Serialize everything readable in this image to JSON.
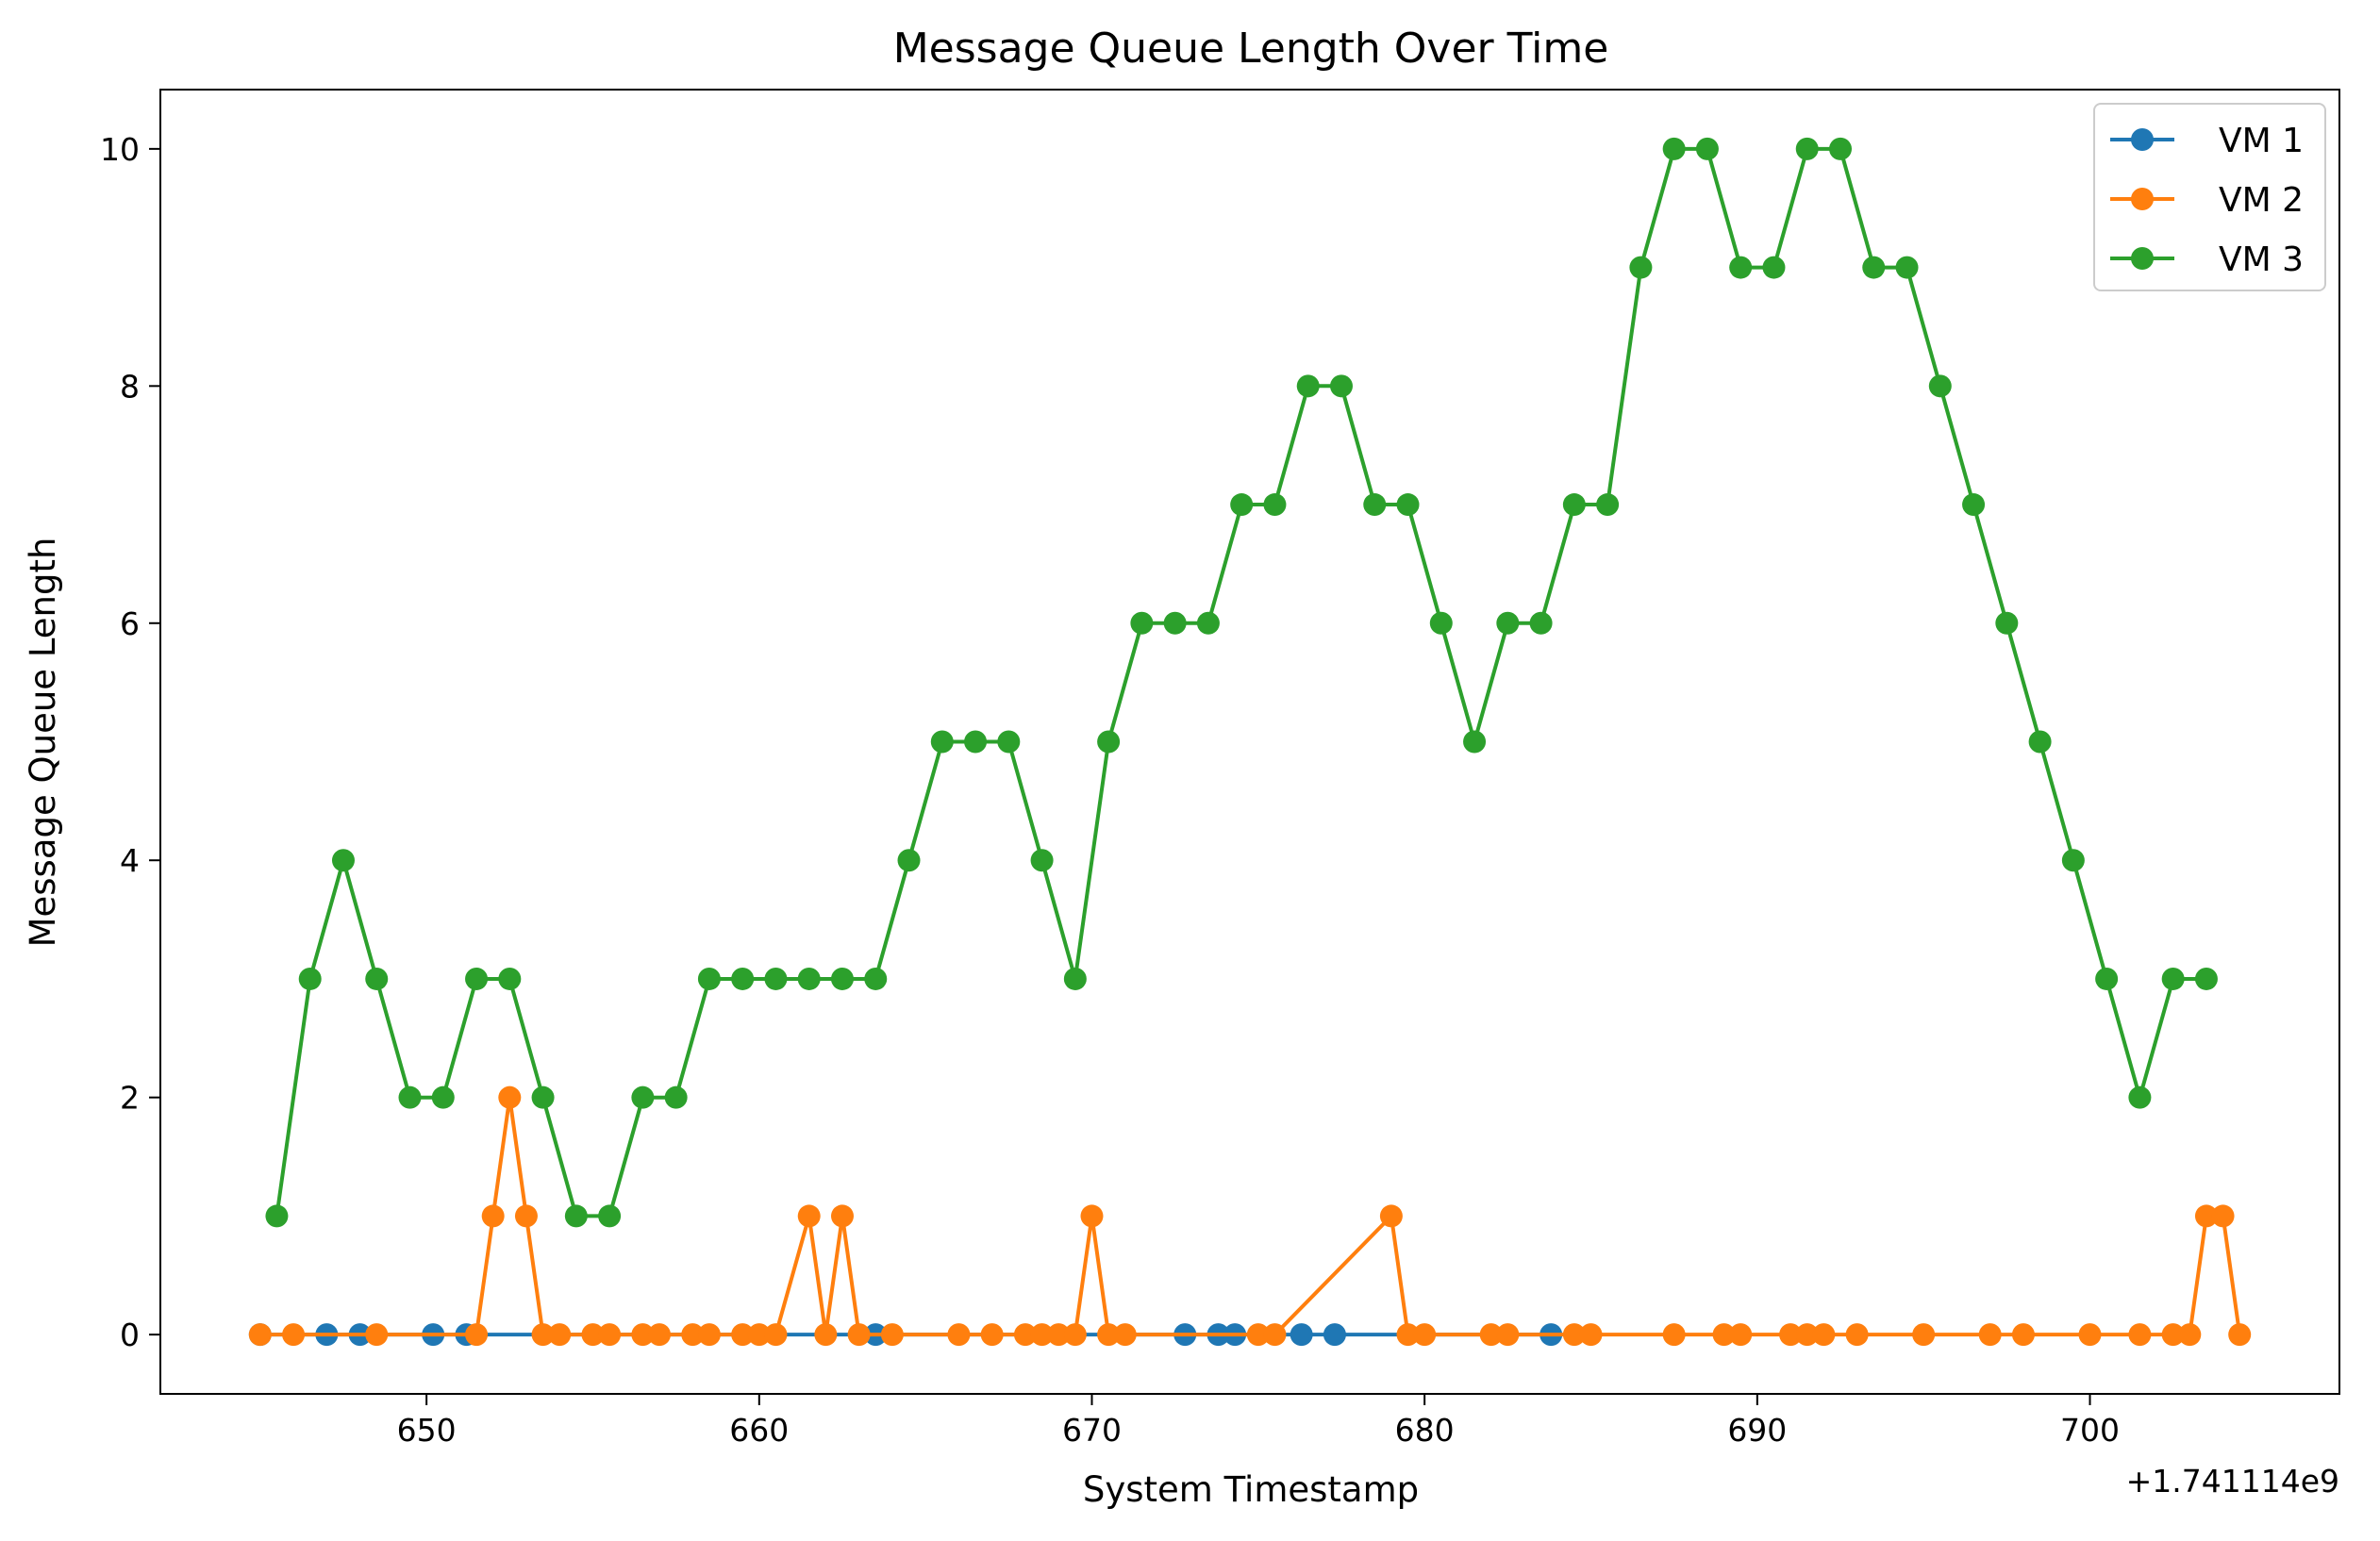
{
  "chart_data": {
    "type": "line",
    "title": "Message Queue Length Over Time",
    "xlabel": "System Timestamp",
    "ylabel": "Message Queue Length",
    "x_offset_label": "+1.741114e9",
    "xlim": [
      642,
      707.5
    ],
    "ylim": [
      -0.5,
      10.5
    ],
    "xticks": [
      650,
      660,
      670,
      680,
      690,
      700
    ],
    "yticks": [
      0,
      2,
      4,
      6,
      8,
      10
    ],
    "grid": false,
    "legend_position": "top-right",
    "series": [
      {
        "name": "VM 1",
        "color": "#1f77b4",
        "x": [
          645.0,
          647.0,
          648.0,
          650.2,
          651.2,
          663.5,
          672.8,
          673.8,
          674.3,
          676.3,
          677.3,
          683.8
        ],
        "y": [
          0,
          0,
          0,
          0,
          0,
          0,
          0,
          0,
          0,
          0,
          0,
          0
        ]
      },
      {
        "name": "VM 2",
        "color": "#ff7f0e",
        "x": [
          645.0,
          646.0,
          648.5,
          651.5,
          652.0,
          652.5,
          653.0,
          653.5,
          654.0,
          655.0,
          655.5,
          656.5,
          657.0,
          658.0,
          658.5,
          659.5,
          660.0,
          660.5,
          661.5,
          662.0,
          662.5,
          663.0,
          664.0,
          666.0,
          667.0,
          668.0,
          668.5,
          669.0,
          669.5,
          670.0,
          670.5,
          671.0,
          675.0,
          675.5,
          679.0,
          679.5,
          680.0,
          682.0,
          682.5,
          684.5,
          685.0,
          687.5,
          689.0,
          689.5,
          691.0,
          691.5,
          692.0,
          693.0,
          695.0,
          697.0,
          698.0,
          700.0,
          701.5,
          702.5,
          703.0,
          703.5,
          704.0,
          704.5
        ],
        "y": [
          0,
          0,
          0,
          0,
          1,
          2,
          1,
          0,
          0,
          0,
          0,
          0,
          0,
          0,
          0,
          0,
          0,
          0,
          1,
          0,
          1,
          0,
          0,
          0,
          0,
          0,
          0,
          0,
          0,
          1,
          0,
          0,
          0,
          0,
          1,
          0,
          0,
          0,
          0,
          0,
          0,
          0,
          0,
          0,
          0,
          0,
          0,
          0,
          0,
          0,
          0,
          0,
          0,
          0,
          0,
          1,
          1,
          0
        ]
      },
      {
        "name": "VM 3",
        "color": "#2ca02c",
        "x": [
          645.5,
          646.5,
          647.5,
          648.5,
          649.5,
          650.5,
          651.5,
          652.5,
          653.5,
          654.5,
          655.5,
          656.5,
          657.5,
          658.5,
          659.5,
          660.5,
          661.5,
          662.5,
          663.5,
          664.5,
          665.5,
          666.5,
          667.5,
          668.5,
          669.5,
          670.5,
          671.5,
          672.5,
          673.5,
          674.5,
          675.5,
          676.5,
          677.5,
          678.5,
          679.5,
          680.5,
          681.5,
          682.5,
          683.5,
          684.5,
          685.5,
          686.5,
          687.5,
          688.5,
          689.5,
          690.5,
          691.5,
          692.5,
          693.5,
          694.5,
          695.5,
          696.5,
          697.5,
          698.5,
          699.5,
          700.5,
          701.5,
          702.5,
          703.5
        ],
        "y": [
          1,
          3,
          4,
          3,
          2,
          2,
          3,
          3,
          2,
          1,
          1,
          2,
          2,
          3,
          3,
          3,
          3,
          3,
          3,
          4,
          5,
          5,
          5,
          4,
          3,
          5,
          6,
          6,
          6,
          7,
          7,
          8,
          8,
          7,
          7,
          6,
          5,
          6,
          6,
          7,
          7,
          9,
          10,
          10,
          9,
          9,
          10,
          10,
          9,
          9,
          8,
          7,
          6,
          5,
          4,
          3,
          2,
          3,
          3
        ]
      }
    ]
  }
}
